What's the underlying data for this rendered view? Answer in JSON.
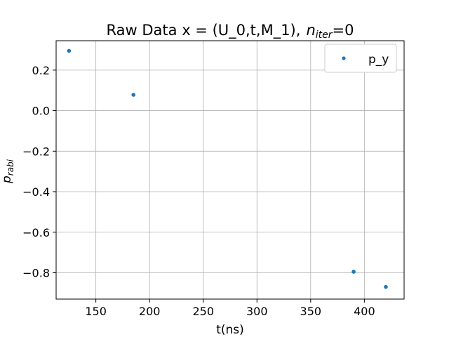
{
  "chart_data": {
    "type": "scatter",
    "title_main": "Raw Data x = (U_0,t,M_1),",
    "title_var": "n",
    "title_sub": "iter",
    "title_tail": "=0",
    "xlabel": "t(ns)",
    "ylabel_var": "p",
    "ylabel_sub": "rabi",
    "xlim": [
      113,
      437
    ],
    "ylim": [
      -0.93,
      0.345
    ],
    "xticks": [
      150,
      200,
      250,
      300,
      350,
      400
    ],
    "xtick_labels": [
      "150",
      "200",
      "250",
      "300",
      "350",
      "400"
    ],
    "yticks": [
      0.2,
      0.0,
      -0.2,
      -0.4,
      -0.6,
      -0.8
    ],
    "ytick_labels": [
      "0.2",
      "0.0",
      "−0.2",
      "−0.4",
      "−0.6",
      "−0.8"
    ],
    "grid": true,
    "legend_position": "top-right",
    "series": [
      {
        "name": "p_y",
        "color": "#1f77b4",
        "x": [
          125,
          185,
          390,
          420
        ],
        "y": [
          0.295,
          0.078,
          -0.795,
          -0.87
        ]
      }
    ]
  }
}
